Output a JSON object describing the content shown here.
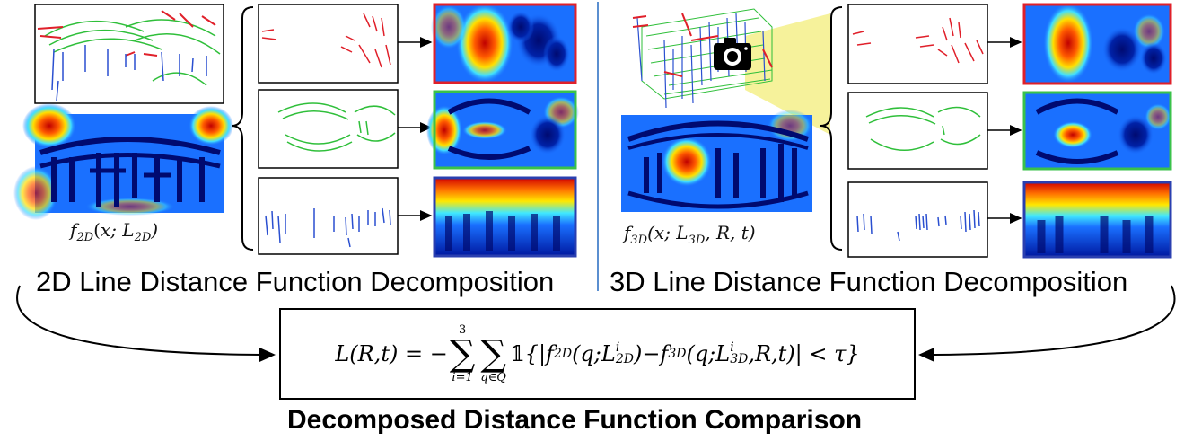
{
  "left": {
    "function_label": {
      "name": "f",
      "sub": "2D",
      "args": "(x; L",
      "arg_sub": "2D",
      "close": ")"
    },
    "caption": "2D Line Distance Function Decomposition"
  },
  "right": {
    "function_label": {
      "name": "f",
      "sub": "3D",
      "args": "(x; L",
      "arg_sub": "3D",
      "rest": ", R, t)"
    },
    "caption": "3D Line Distance Function Decomposition"
  },
  "formula": {
    "lhs": "L(R,t) = −",
    "sum1_top": "3",
    "sum1_bottom": "i=1",
    "sum2_bottom": "q∈Q",
    "indicator": "𝟙",
    "body_open": "{|f",
    "f2d_sub": "2D",
    "body_mid1": "(q;L",
    "l2d_sup": "i",
    "l2d_sub": "2D",
    "body_mid2": ")−f",
    "f3d_sub": "3D",
    "body_mid3": "(q;L",
    "l3d_sup": "i",
    "l3d_sub": "3D",
    "body_end": ",R,t)| < τ}"
  },
  "bottom_title": "Decomposed Distance Function Comparison",
  "colors": {
    "red_lines": "#e0202a",
    "green_lines": "#2fbf3a",
    "blue_lines": "#2a4fd0",
    "heat_red_border": "#e0202a",
    "heat_green_border": "#3ac24a",
    "heat_blue_border": "#2a3fb0",
    "divider": "#5b8fd0",
    "camera_frustum": "#f4f08a"
  },
  "icons": [
    "camera-icon",
    "brace-icon",
    "arrow-icon"
  ]
}
